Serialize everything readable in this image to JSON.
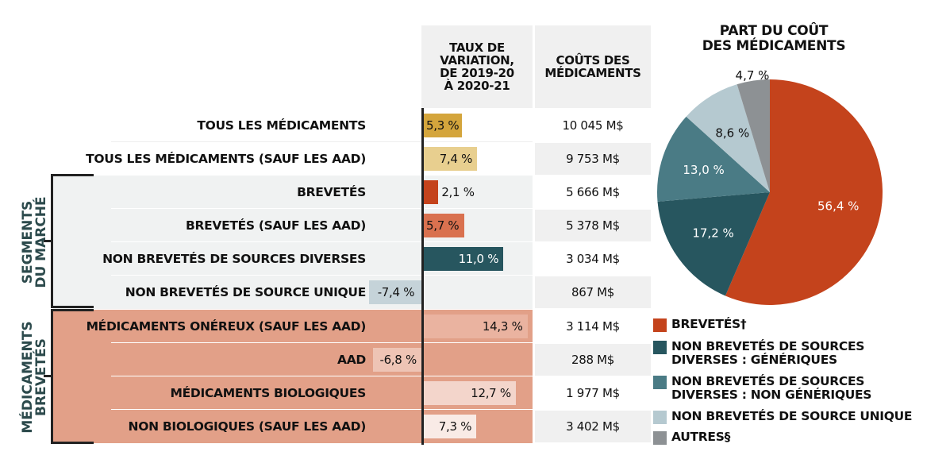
{
  "headers": {
    "rate": "TAUX DE\nVARIATION,\nDE 2019-20\nÀ 2020-21",
    "cost": "COÛTS DES\nMÉDICAMENTS"
  },
  "groups": {
    "market": "SEGMENTS\nDU MARCHÉ",
    "patented": "MÉDICAMENTS\nBREVETÉS"
  },
  "chart_data": [
    {
      "type": "bar",
      "title": "Taux de variation, de 2019-20 à 2020-21",
      "unit": "%",
      "categories": [
        "TOUS LES MÉDICAMENTS",
        "TOUS LES MÉDICAMENTS (SAUF LES AAD)",
        "BREVETÉS",
        "BREVETÉS (SAUF LES AAD)",
        "NON BREVETÉS DE SOURCES DIVERSES",
        "NON BREVETÉS DE SOURCE UNIQUE",
        "MÉDICAMENTS ONÉREUX (SAUF LES AAD)",
        "AAD",
        "MÉDICAMENTS BIOLOGIQUES",
        "NON BIOLOGIQUES (SAUF LES AAD)"
      ],
      "values": [
        5.3,
        7.4,
        2.1,
        5.7,
        11.0,
        -7.4,
        14.3,
        -6.8,
        12.7,
        7.3
      ],
      "labels": [
        "5,3 %",
        "7,4 %",
        "2,1 %",
        "5,7 %",
        "11,0 %",
        "-7,4 %",
        "14,3 %",
        "-6,8 %",
        "12,7 %",
        "7,3 %"
      ],
      "bar_colors": [
        "#d4a53c",
        "#e8cf8f",
        "#c4431c",
        "#d9714f",
        "#27565f",
        "#c5d3d9",
        "#eab3a0",
        "#eec4b5",
        "#f3d5cb",
        "#f9ebe6"
      ],
      "label_colors": [
        "#111111",
        "#111111",
        "#111111",
        "#111111",
        "#ffffff",
        "#111111",
        "#111111",
        "#111111",
        "#111111",
        "#111111"
      ],
      "group": [
        "all",
        "all",
        "market",
        "market",
        "market",
        "market",
        "patented",
        "patented",
        "patented",
        "patented"
      ],
      "costs": [
        "10 045 M$",
        "9 753 M$",
        "5 666 M$",
        "5 378 M$",
        "3 034 M$",
        "867 M$",
        "3 114 M$",
        "288 M$",
        "1 977 M$",
        "3 402 M$"
      ]
    },
    {
      "type": "pie",
      "title": "PART DU COÛT\nDES MÉDICAMENTS",
      "slices": [
        {
          "name": "BREVETÉS†",
          "value": 56.4,
          "label": "56,4 %",
          "color": "#c4431c",
          "label_color": "#ffffff"
        },
        {
          "name": "NON BREVETÉS DE SOURCES\nDIVERSES : GÉNÉRIQUES",
          "value": 17.2,
          "label": "17,2 %",
          "color": "#27565f",
          "label_color": "#ffffff"
        },
        {
          "name": "NON BREVETÉS DE SOURCES\nDIVERSES : NON GÉNÉRIQUES",
          "value": 13.0,
          "label": "13,0 %",
          "color": "#4a7b85",
          "label_color": "#ffffff"
        },
        {
          "name": "NON BREVETÉS DE SOURCE UNIQUE",
          "value": 8.6,
          "label": "8,6 %",
          "color": "#b5c9d0",
          "label_color": "#111111"
        },
        {
          "name": "AUTRES§",
          "value": 4.7,
          "label": "4,7 %",
          "color": "#8d9194",
          "label_color": "#111111"
        }
      ],
      "legend_position": "bottom-right"
    }
  ]
}
